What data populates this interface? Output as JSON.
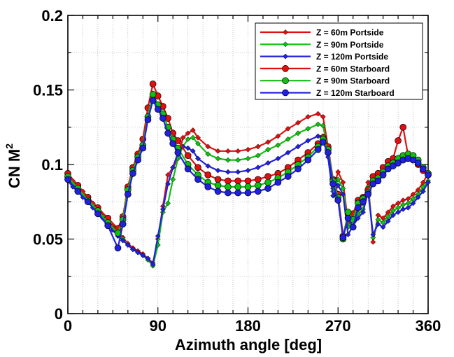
{
  "chart_data": {
    "type": "line",
    "title": "",
    "xlabel": "Azimuth angle [deg]",
    "ylabel": "CN M",
    "ylabel_sup": "2",
    "xlim": [
      0,
      360
    ],
    "ylim": [
      0,
      0.2
    ],
    "xticks": [
      0,
      90,
      180,
      270,
      360
    ],
    "xtick_labels": [
      "0",
      "90",
      "180",
      "270",
      "360"
    ],
    "yticks": [
      0,
      0.05,
      0.1,
      0.15,
      0.2
    ],
    "ytick_labels": [
      "0",
      "0.05",
      "0.1",
      "0.15",
      "0.2"
    ],
    "grid": true,
    "legend_position": "top-right",
    "series": [
      {
        "name": "Z = 60m Portside",
        "color": "#e01010",
        "marker": "diamond",
        "x": [
          0,
          5,
          10,
          15,
          20,
          25,
          30,
          35,
          40,
          45,
          50,
          55,
          60,
          65,
          70,
          75,
          80,
          85,
          90,
          95,
          100,
          105,
          110,
          115,
          120,
          125,
          130,
          140,
          150,
          160,
          170,
          180,
          190,
          200,
          210,
          220,
          230,
          240,
          250,
          255,
          260,
          265,
          270,
          275,
          280,
          285,
          290,
          295,
          300,
          305,
          310,
          315,
          320,
          325,
          330,
          335,
          340,
          345,
          350,
          355,
          360
        ],
        "y": [
          0.093,
          0.089,
          0.086,
          0.082,
          0.078,
          0.074,
          0.07,
          0.066,
          0.062,
          0.059,
          0.055,
          0.051,
          0.047,
          0.044,
          0.042,
          0.04,
          0.037,
          0.034,
          0.05,
          0.072,
          0.093,
          0.098,
          0.104,
          0.118,
          0.121,
          0.123,
          0.118,
          0.112,
          0.109,
          0.109,
          0.109,
          0.11,
          0.112,
          0.115,
          0.119,
          0.124,
          0.128,
          0.132,
          0.134,
          0.132,
          0.112,
          0.084,
          0.095,
          0.088,
          0.061,
          0.066,
          0.07,
          0.074,
          0.088,
          0.048,
          0.066,
          0.064,
          0.068,
          0.072,
          0.074,
          0.076,
          0.077,
          0.08,
          0.083,
          0.088,
          0.094
        ]
      },
      {
        "name": "Z = 90m Portside",
        "color": "#10c010",
        "marker": "diamond",
        "x": [
          0,
          5,
          10,
          15,
          20,
          25,
          30,
          35,
          40,
          45,
          50,
          55,
          60,
          65,
          70,
          75,
          80,
          85,
          90,
          95,
          100,
          105,
          110,
          115,
          120,
          125,
          130,
          140,
          150,
          160,
          170,
          180,
          190,
          200,
          210,
          220,
          230,
          240,
          250,
          255,
          260,
          265,
          270,
          275,
          280,
          285,
          290,
          295,
          300,
          305,
          310,
          315,
          320,
          325,
          330,
          335,
          340,
          345,
          350,
          355,
          360
        ],
        "y": [
          0.091,
          0.087,
          0.084,
          0.08,
          0.077,
          0.073,
          0.069,
          0.065,
          0.061,
          0.057,
          0.053,
          0.05,
          0.046,
          0.043,
          0.041,
          0.039,
          0.036,
          0.032,
          0.046,
          0.068,
          0.074,
          0.09,
          0.104,
          0.112,
          0.117,
          0.118,
          0.114,
          0.107,
          0.104,
          0.103,
          0.103,
          0.104,
          0.106,
          0.11,
          0.113,
          0.117,
          0.121,
          0.124,
          0.127,
          0.126,
          0.11,
          0.082,
          0.09,
          0.084,
          0.058,
          0.063,
          0.067,
          0.07,
          0.085,
          0.051,
          0.063,
          0.061,
          0.065,
          0.069,
          0.071,
          0.073,
          0.074,
          0.077,
          0.08,
          0.085,
          0.089
        ]
      },
      {
        "name": "Z = 120m Portside",
        "color": "#2020e0",
        "marker": "diamond",
        "x": [
          0,
          5,
          10,
          15,
          20,
          25,
          30,
          35,
          40,
          45,
          50,
          55,
          60,
          65,
          70,
          75,
          80,
          85,
          90,
          95,
          100,
          105,
          110,
          115,
          120,
          125,
          130,
          140,
          150,
          160,
          170,
          180,
          190,
          200,
          210,
          220,
          230,
          240,
          250,
          255,
          260,
          265,
          270,
          275,
          280,
          285,
          290,
          295,
          300,
          305,
          310,
          315,
          320,
          325,
          330,
          335,
          340,
          345,
          350,
          355,
          360
        ],
        "y": [
          0.089,
          0.085,
          0.082,
          0.078,
          0.075,
          0.071,
          0.067,
          0.064,
          0.06,
          0.056,
          0.052,
          0.049,
          0.046,
          0.043,
          0.041,
          0.039,
          0.037,
          0.033,
          0.052,
          0.07,
          0.087,
          0.098,
          0.108,
          0.112,
          0.111,
          0.109,
          0.104,
          0.099,
          0.096,
          0.095,
          0.095,
          0.096,
          0.098,
          0.101,
          0.104,
          0.108,
          0.112,
          0.116,
          0.119,
          0.119,
          0.105,
          0.079,
          0.086,
          0.08,
          0.053,
          0.059,
          0.064,
          0.068,
          0.082,
          0.053,
          0.06,
          0.058,
          0.062,
          0.066,
          0.068,
          0.07,
          0.071,
          0.074,
          0.078,
          0.082,
          0.088
        ]
      },
      {
        "name": "Z = 60m Starboard",
        "color": "#e01010",
        "marker": "circle",
        "x": [
          0,
          10,
          20,
          30,
          40,
          50,
          55,
          60,
          65,
          70,
          75,
          80,
          85,
          90,
          95,
          100,
          105,
          110,
          120,
          130,
          140,
          150,
          160,
          170,
          180,
          190,
          200,
          210,
          220,
          230,
          240,
          250,
          255,
          260,
          265,
          270,
          275,
          280,
          285,
          290,
          295,
          300,
          305,
          310,
          315,
          320,
          325,
          330,
          335,
          340,
          345,
          350,
          355,
          360
        ],
        "y": [
          0.094,
          0.086,
          0.078,
          0.071,
          0.064,
          0.057,
          0.065,
          0.085,
          0.098,
          0.107,
          0.117,
          0.138,
          0.154,
          0.146,
          0.139,
          0.131,
          0.121,
          0.116,
          0.106,
          0.098,
          0.093,
          0.09,
          0.089,
          0.089,
          0.089,
          0.09,
          0.092,
          0.094,
          0.098,
          0.103,
          0.108,
          0.114,
          0.118,
          0.112,
          0.09,
          0.08,
          0.052,
          0.067,
          0.067,
          0.076,
          0.078,
          0.083,
          0.092,
          0.094,
          0.098,
          0.102,
          0.104,
          0.116,
          0.125,
          0.106,
          0.104,
          0.1,
          0.096,
          0.093
        ]
      },
      {
        "name": "Z = 90m Starboard",
        "color": "#10c010",
        "marker": "circle",
        "x": [
          0,
          10,
          20,
          30,
          40,
          50,
          55,
          60,
          65,
          70,
          75,
          80,
          85,
          90,
          95,
          100,
          105,
          110,
          120,
          130,
          140,
          150,
          160,
          170,
          180,
          190,
          200,
          210,
          220,
          230,
          240,
          250,
          255,
          260,
          265,
          270,
          275,
          280,
          285,
          290,
          295,
          300,
          305,
          310,
          315,
          320,
          325,
          330,
          335,
          340,
          345,
          350,
          355,
          360
        ],
        "y": [
          0.092,
          0.084,
          0.076,
          0.069,
          0.061,
          0.054,
          0.063,
          0.083,
          0.096,
          0.105,
          0.113,
          0.132,
          0.147,
          0.14,
          0.134,
          0.125,
          0.117,
          0.111,
          0.1,
          0.093,
          0.088,
          0.086,
          0.085,
          0.085,
          0.085,
          0.086,
          0.088,
          0.091,
          0.095,
          0.1,
          0.105,
          0.112,
          0.117,
          0.11,
          0.089,
          0.078,
          0.05,
          0.068,
          0.063,
          0.074,
          0.077,
          0.081,
          0.089,
          0.091,
          0.095,
          0.099,
          0.101,
          0.104,
          0.106,
          0.107,
          0.106,
          0.103,
          0.098,
          0.094
        ]
      },
      {
        "name": "Z = 120m Starboard",
        "color": "#2020e0",
        "marker": "circle",
        "x": [
          0,
          10,
          20,
          30,
          40,
          50,
          55,
          60,
          65,
          70,
          75,
          80,
          85,
          90,
          95,
          100,
          105,
          110,
          120,
          130,
          140,
          150,
          160,
          170,
          180,
          190,
          200,
          210,
          220,
          230,
          240,
          250,
          255,
          260,
          265,
          270,
          275,
          280,
          285,
          290,
          295,
          300,
          305,
          310,
          315,
          320,
          325,
          330,
          335,
          340,
          345,
          350,
          355,
          360
        ],
        "y": [
          0.09,
          0.082,
          0.075,
          0.067,
          0.059,
          0.044,
          0.06,
          0.08,
          0.094,
          0.103,
          0.111,
          0.13,
          0.143,
          0.137,
          0.131,
          0.121,
          0.114,
          0.108,
          0.097,
          0.09,
          0.085,
          0.082,
          0.081,
          0.081,
          0.081,
          0.082,
          0.084,
          0.088,
          0.092,
          0.097,
          0.103,
          0.11,
          0.115,
          0.108,
          0.087,
          0.076,
          0.051,
          0.064,
          0.058,
          0.071,
          0.075,
          0.08,
          0.087,
          0.089,
          0.093,
          0.097,
          0.099,
          0.101,
          0.103,
          0.104,
          0.103,
          0.101,
          0.097,
          0.093
        ]
      }
    ]
  }
}
